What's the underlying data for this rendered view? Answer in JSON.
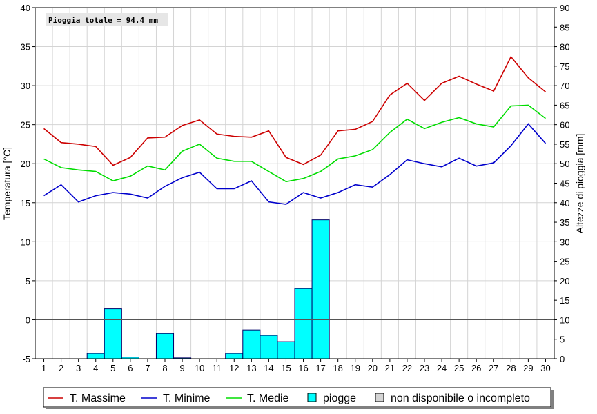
{
  "chart_data": {
    "type": "line",
    "annotation": "Pioggia totale = 94.4 mm",
    "ylabel_left": "Temperatura [°C]",
    "ylabel_right": "Altezze di pioggia [mm]",
    "y_left_range": [
      -5,
      40
    ],
    "y_left_ticks": [
      -5,
      0,
      5,
      10,
      15,
      20,
      25,
      30,
      35,
      40
    ],
    "y_right_range": [
      0,
      90
    ],
    "y_right_ticks": [
      0,
      5,
      10,
      15,
      20,
      25,
      30,
      35,
      40,
      45,
      50,
      55,
      60,
      65,
      70,
      75,
      80,
      85,
      90
    ],
    "x": [
      1,
      2,
      3,
      4,
      5,
      6,
      7,
      8,
      9,
      10,
      11,
      12,
      13,
      14,
      15,
      16,
      17,
      18,
      19,
      20,
      21,
      22,
      23,
      24,
      25,
      26,
      27,
      28,
      29,
      30
    ],
    "grid": true,
    "legend_position": "bottom",
    "series": [
      {
        "name": "T. Massime",
        "color": "#cc0000",
        "axis": "left",
        "kind": "line",
        "values": [
          24.5,
          22.7,
          22.5,
          22.2,
          19.8,
          20.8,
          23.3,
          23.4,
          24.9,
          25.6,
          23.8,
          23.5,
          23.4,
          24.2,
          20.8,
          19.9,
          21.1,
          24.2,
          24.4,
          25.4,
          28.8,
          30.3,
          28.1,
          30.3,
          31.2,
          30.2,
          29.3,
          33.7,
          31.0,
          29.2
        ]
      },
      {
        "name": "T. Minime",
        "color": "#0000cc",
        "axis": "left",
        "kind": "line",
        "values": [
          15.9,
          17.3,
          15.1,
          15.9,
          16.3,
          16.1,
          15.6,
          17.1,
          18.2,
          18.9,
          16.8,
          16.8,
          17.8,
          15.1,
          14.8,
          16.3,
          15.6,
          16.3,
          17.3,
          17.0,
          18.6,
          20.5,
          20.0,
          19.6,
          20.7,
          19.7,
          20.1,
          22.3,
          25.1,
          22.6
        ]
      },
      {
        "name": "T. Medie",
        "color": "#00dd00",
        "axis": "left",
        "kind": "line",
        "values": [
          20.6,
          19.5,
          19.2,
          19.0,
          17.8,
          18.4,
          19.7,
          19.2,
          21.6,
          22.5,
          20.7,
          20.3,
          20.3,
          19.0,
          17.7,
          18.1,
          19.0,
          20.6,
          21.0,
          21.8,
          24.0,
          25.7,
          24.5,
          25.3,
          25.9,
          25.1,
          24.7,
          27.4,
          27.5,
          25.8
        ]
      },
      {
        "name": "piogge",
        "color": "#00ffff",
        "axis": "right",
        "kind": "bar",
        "values": [
          0,
          0,
          0,
          1.4,
          12.8,
          0.4,
          0,
          6.5,
          0.2,
          0,
          0,
          1.4,
          7.4,
          6.0,
          4.4,
          18.0,
          35.6,
          0,
          0,
          0,
          0,
          0,
          0,
          0,
          0,
          0,
          0,
          0,
          0,
          0
        ]
      }
    ],
    "legend": [
      {
        "label": "T. Massime",
        "kind": "line",
        "color": "#cc0000"
      },
      {
        "label": "T. Minime",
        "kind": "line",
        "color": "#0000cc"
      },
      {
        "label": "T. Medie",
        "kind": "line",
        "color": "#00dd00"
      },
      {
        "label": "piogge",
        "kind": "box",
        "color": "#00ffff"
      },
      {
        "label": "non disponibile o incompleto",
        "kind": "box",
        "color": "#d4d4d4"
      }
    ]
  }
}
